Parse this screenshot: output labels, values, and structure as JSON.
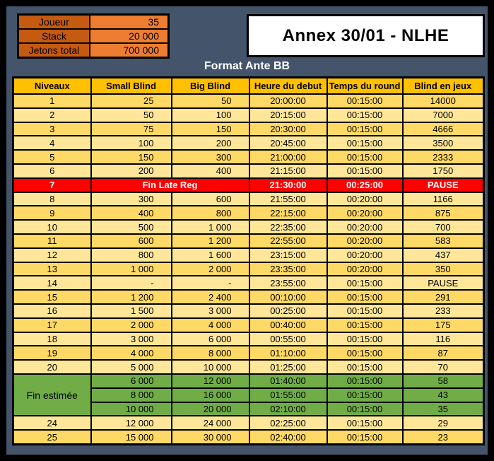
{
  "frame": {
    "background": "#44546A",
    "border": "#000000"
  },
  "info_panel": {
    "label_bg": "#C55A11",
    "value_bg": "#ED7D31",
    "rows": [
      {
        "label": "Joueur",
        "value": "35"
      },
      {
        "label": "Stack",
        "value": "20 000"
      },
      {
        "label": "Jetons total",
        "value": "700 000"
      }
    ]
  },
  "annex": {
    "title": "Annex 30/01 - NLHE"
  },
  "subtitle": "Format Ante BB",
  "table": {
    "header_bg": "#FFC000",
    "row_colors": {
      "odd": "#FFD966",
      "even": "#FFE699",
      "red": "#FF0000",
      "green": "#70AD47"
    },
    "headers": [
      "Niveaux",
      "Small Blind",
      "Big Blind",
      "Heure du debut",
      "Temps du round",
      "Blind en jeux"
    ],
    "green_group_label": "Fin estimée",
    "rows": [
      {
        "kind": "odd",
        "niveau": "1",
        "sb": "25",
        "bb": "50",
        "heure": "20:00:00",
        "temps": "00:15:00",
        "blind": "14000"
      },
      {
        "kind": "even",
        "niveau": "2",
        "sb": "50",
        "bb": "100",
        "heure": "20:15:00",
        "temps": "00:15:00",
        "blind": "7000"
      },
      {
        "kind": "odd",
        "niveau": "3",
        "sb": "75",
        "bb": "150",
        "heure": "20:30:00",
        "temps": "00:15:00",
        "blind": "4666"
      },
      {
        "kind": "even",
        "niveau": "4",
        "sb": "100",
        "bb": "200",
        "heure": "20:45:00",
        "temps": "00:15:00",
        "blind": "3500"
      },
      {
        "kind": "odd",
        "niveau": "5",
        "sb": "150",
        "bb": "300",
        "heure": "21:00:00",
        "temps": "00:15:00",
        "blind": "2333"
      },
      {
        "kind": "even",
        "niveau": "6",
        "sb": "200",
        "bb": "400",
        "heure": "21:15:00",
        "temps": "00:15:00",
        "blind": "1750"
      },
      {
        "kind": "red",
        "niveau": "7",
        "label": "Fin Late Reg",
        "heure": "21:30:00",
        "temps": "00:25:00",
        "blind": "PAUSE"
      },
      {
        "kind": "even",
        "niveau": "8",
        "sb": "300",
        "bb": "600",
        "heure": "21:55:00",
        "temps": "00:20:00",
        "blind": "1166"
      },
      {
        "kind": "odd",
        "niveau": "9",
        "sb": "400",
        "bb": "800",
        "heure": "22:15:00",
        "temps": "00:20:00",
        "blind": "875"
      },
      {
        "kind": "even",
        "niveau": "10",
        "sb": "500",
        "bb": "1 000",
        "heure": "22:35:00",
        "temps": "00:20:00",
        "blind": "700"
      },
      {
        "kind": "odd",
        "niveau": "11",
        "sb": "600",
        "bb": "1 200",
        "heure": "22:55:00",
        "temps": "00:20:00",
        "blind": "583"
      },
      {
        "kind": "even",
        "niveau": "12",
        "sb": "800",
        "bb": "1 600",
        "heure": "23:15:00",
        "temps": "00:20:00",
        "blind": "437"
      },
      {
        "kind": "odd",
        "niveau": "13",
        "sb": "1 000",
        "bb": "2 000",
        "heure": "23:35:00",
        "temps": "00:20:00",
        "blind": "350"
      },
      {
        "kind": "even",
        "niveau": "14",
        "sb": "-",
        "bb": "-",
        "heure": "23:55:00",
        "temps": "00:15:00",
        "blind": "PAUSE"
      },
      {
        "kind": "odd",
        "niveau": "15",
        "sb": "1 200",
        "bb": "2 400",
        "heure": "00:10:00",
        "temps": "00:15:00",
        "blind": "291"
      },
      {
        "kind": "even",
        "niveau": "16",
        "sb": "1 500",
        "bb": "3 000",
        "heure": "00:25:00",
        "temps": "00:15:00",
        "blind": "233"
      },
      {
        "kind": "odd",
        "niveau": "17",
        "sb": "2 000",
        "bb": "4 000",
        "heure": "00:40:00",
        "temps": "00:15:00",
        "blind": "175"
      },
      {
        "kind": "even",
        "niveau": "18",
        "sb": "3 000",
        "bb": "6 000",
        "heure": "00:55:00",
        "temps": "00:15:00",
        "blind": "116"
      },
      {
        "kind": "odd",
        "niveau": "19",
        "sb": "4 000",
        "bb": "8 000",
        "heure": "01:10:00",
        "temps": "00:15:00",
        "blind": "87"
      },
      {
        "kind": "even",
        "niveau": "20",
        "sb": "5 000",
        "bb": "10 000",
        "heure": "01:25:00",
        "temps": "00:15:00",
        "blind": "70"
      },
      {
        "kind": "green",
        "niveau": "",
        "sb": "6 000",
        "bb": "12 000",
        "heure": "01:40:00",
        "temps": "00:15:00",
        "blind": "58"
      },
      {
        "kind": "green",
        "niveau": "",
        "sb": "8 000",
        "bb": "16 000",
        "heure": "01:55:00",
        "temps": "00:15:00",
        "blind": "43"
      },
      {
        "kind": "green",
        "niveau": "",
        "sb": "10 000",
        "bb": "20 000",
        "heure": "02:10:00",
        "temps": "00:15:00",
        "blind": "35"
      },
      {
        "kind": "even",
        "niveau": "24",
        "sb": "12 000",
        "bb": "24 000",
        "heure": "02:25:00",
        "temps": "00:15:00",
        "blind": "29"
      },
      {
        "kind": "odd",
        "niveau": "25",
        "sb": "15 000",
        "bb": "30 000",
        "heure": "02:40:00",
        "temps": "00:15:00",
        "blind": "23"
      }
    ]
  }
}
